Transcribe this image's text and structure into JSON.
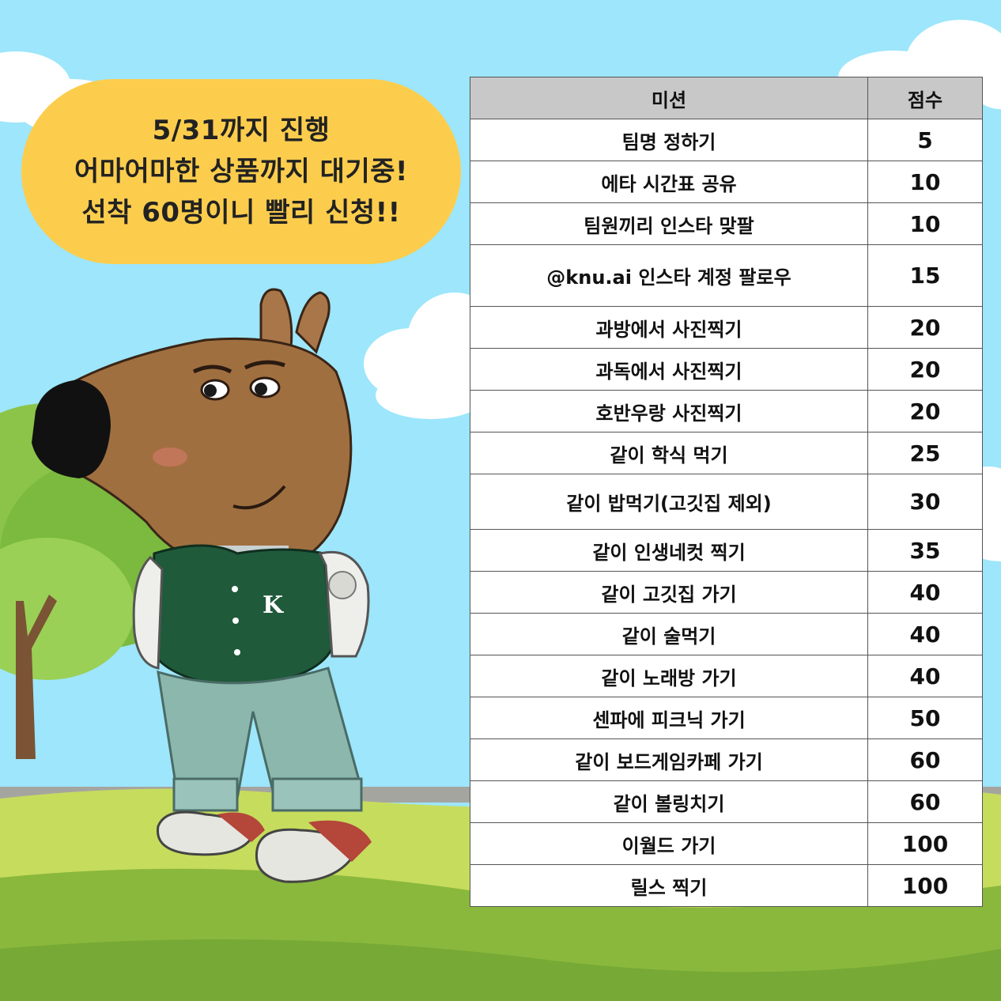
{
  "banner": {
    "line1": "5/31까지 진행",
    "line2": "어마어마한 상품까지 대기중!",
    "line3": "선착 60명이니 빨리 신청!!"
  },
  "jacket_letter": "K",
  "table": {
    "headers": {
      "mission": "미션",
      "score": "점수"
    },
    "rows": [
      {
        "mission": "팀명 정하기",
        "score": "5"
      },
      {
        "mission": "에타 시간표 공유",
        "score": "10"
      },
      {
        "mission": "팀원끼리 인스타 맞팔",
        "score": "10"
      },
      {
        "mission": "@knu.ai 인스타 계정 팔로우",
        "score": "15"
      },
      {
        "mission": "과방에서 사진찍기",
        "score": "20"
      },
      {
        "mission": "과독에서 사진찍기",
        "score": "20"
      },
      {
        "mission": "호반우랑 사진찍기",
        "score": "20"
      },
      {
        "mission": "같이 학식 먹기",
        "score": "25"
      },
      {
        "mission": "같이 밥먹기(고깃집 제외)",
        "score": "30"
      },
      {
        "mission": "같이 인생네컷 찍기",
        "score": "35"
      },
      {
        "mission": "같이 고깃집 가기",
        "score": "40"
      },
      {
        "mission": "같이 술먹기",
        "score": "40"
      },
      {
        "mission": "같이 노래방 가기",
        "score": "40"
      },
      {
        "mission": "센파에 피크닉 가기",
        "score": "50"
      },
      {
        "mission": "같이 보드게임카페 가기",
        "score": "60"
      },
      {
        "mission": "같이 볼링치기",
        "score": "60"
      },
      {
        "mission": "이월드 가기",
        "score": "100"
      },
      {
        "mission": "릴스 찍기",
        "score": "100"
      }
    ]
  },
  "colors": {
    "sky": "#9de6fb",
    "bubble": "#fccd4d",
    "grass_dark": "#8ab83d",
    "grass_light": "#c6dc5c",
    "jacket": "#1f5a3b"
  }
}
